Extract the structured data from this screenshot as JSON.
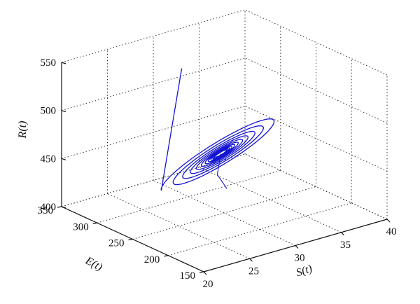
{
  "chart_data": {
    "type": "line",
    "projection": "3d",
    "title": "",
    "xlabel": "S(t)",
    "ylabel": "E(t)",
    "zlabel": "R(t)",
    "xlim": [
      20,
      40
    ],
    "ylim": [
      150,
      350
    ],
    "zlim": [
      400,
      550
    ],
    "xticks": [
      "20",
      "25",
      "30",
      "35",
      "40"
    ],
    "yticks": [
      "150",
      "200",
      "250",
      "300",
      "350"
    ],
    "zticks": [
      "400",
      "450",
      "500",
      "550"
    ],
    "grid": true,
    "line_color": "#1414d2",
    "series": [
      {
        "description_type": "spiral trajectory converging to equilibrium",
        "start": {
          "S": 30,
          "E": 310,
          "R": 530
        },
        "equilibrium": {
          "S": 30,
          "E": 255,
          "R": 460
        },
        "points": [
          {
            "S": 30.0,
            "E": 310.0,
            "R": 530.0
          },
          {
            "S": 33.2,
            "E": 214.0,
            "R": 482.0
          },
          {
            "S": 27.5,
            "E": 304.0,
            "R": 432.0
          },
          {
            "S": 32.3,
            "E": 223.0,
            "R": 478.0
          },
          {
            "S": 28.0,
            "E": 294.0,
            "R": 437.0
          },
          {
            "S": 31.8,
            "E": 230.0,
            "R": 473.0
          },
          {
            "S": 28.5,
            "E": 282.0,
            "R": 442.0
          },
          {
            "S": 31.2,
            "E": 238.0,
            "R": 469.0
          },
          {
            "S": 29.0,
            "E": 272.0,
            "R": 448.0
          },
          {
            "S": 30.7,
            "E": 245.0,
            "R": 465.0
          },
          {
            "S": 29.5,
            "E": 264.0,
            "R": 453.0
          },
          {
            "S": 30.3,
            "E": 250.0,
            "R": 462.0
          },
          {
            "S": 30.0,
            "E": 255.0,
            "R": 460.0
          }
        ]
      }
    ]
  }
}
